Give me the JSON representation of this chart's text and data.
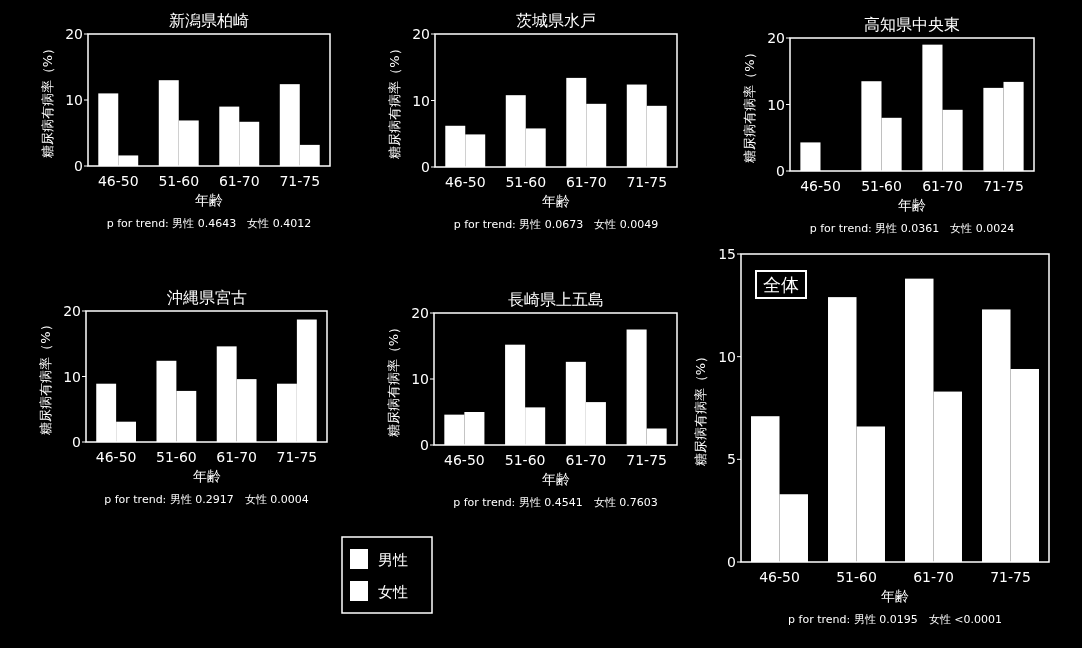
{
  "chart_data": [
    {
      "type": "bar",
      "title": "新潟県柏崎",
      "xlabel": "年齢",
      "ylabel": "糖尿病有病率（%）",
      "categories": [
        "46-50",
        "51-60",
        "61-70",
        "71-75"
      ],
      "series": [
        {
          "color": "#ffffff",
          "values": [
            11.0,
            13.0,
            9.0,
            12.4
          ]
        },
        {
          "color": "#ffffff",
          "values": [
            1.6,
            6.9,
            6.7,
            3.2
          ]
        }
      ],
      "ylim": [
        0,
        20
      ],
      "yticks": [
        0,
        10,
        20
      ],
      "annotations": [
        "p for trend: 男性 0.4643　女性 0.4012"
      ]
    },
    {
      "type": "bar",
      "title": "茨城県水戸",
      "xlabel": "年齢",
      "ylabel": "糖尿病有病率（%）",
      "categories": [
        "46-50",
        "51-60",
        "61-70",
        "71-75"
      ],
      "series": [
        {
          "color": "#ffffff",
          "values": [
            6.2,
            10.8,
            13.4,
            12.4
          ]
        },
        {
          "color": "#ffffff",
          "values": [
            4.9,
            5.8,
            9.5,
            9.2
          ]
        }
      ],
      "ylim": [
        0,
        20
      ],
      "yticks": [
        0,
        10,
        20
      ],
      "annotations": [
        "p for trend: 男性 0.0673　女性 0.0049"
      ]
    },
    {
      "type": "bar",
      "title": "高知県中央東",
      "xlabel": "年齢",
      "ylabel": "糖尿病有病率（%）",
      "categories": [
        "46-50",
        "51-60",
        "61-70",
        "71-75"
      ],
      "series": [
        {
          "color": "#ffffff",
          "values": [
            4.3,
            13.5,
            19.0,
            12.5
          ]
        },
        {
          "color": "#ffffff",
          "values": [
            0,
            8.0,
            9.2,
            13.4
          ]
        }
      ],
      "ylim": [
        0,
        20
      ],
      "yticks": [
        0,
        10,
        20
      ],
      "annotations": [
        "p for trend: 男性 0.0361　女性 0.0024"
      ]
    },
    {
      "type": "bar",
      "title": "沖縄県宮古",
      "xlabel": "年齢",
      "ylabel": "糖尿病有病率（%）",
      "categories": [
        "46-50",
        "51-60",
        "61-70",
        "71-75"
      ],
      "series": [
        {
          "color": "#ffffff",
          "values": [
            8.9,
            12.4,
            14.6,
            8.9
          ]
        },
        {
          "color": "#ffffff",
          "values": [
            3.1,
            7.8,
            9.6,
            18.7
          ]
        }
      ],
      "ylim": [
        0,
        20
      ],
      "yticks": [
        0,
        10,
        20
      ],
      "annotations": [
        "p for trend: 男性 0.2917　女性 0.0004"
      ]
    },
    {
      "type": "bar",
      "title": "長崎県上五島",
      "xlabel": "年齢",
      "ylabel": "糖尿病有病率（%）",
      "categories": [
        "46-50",
        "51-60",
        "61-70",
        "71-75"
      ],
      "series": [
        {
          "name": "男性",
          "color": "#ffffff",
          "values": [
            4.6,
            15.2,
            12.6,
            17.5
          ]
        },
        {
          "name": "女性",
          "color": "#ffffff",
          "values": [
            5.0,
            5.7,
            6.5,
            2.5
          ]
        }
      ],
      "ylim": [
        0,
        20
      ],
      "yticks": [
        0,
        10,
        20
      ],
      "annotations": [
        "p for trend: 男性 0.4541　女性 0.7603"
      ],
      "legend": "bottom left"
    },
    {
      "type": "bar",
      "title": "全体",
      "xlabel": "年齢",
      "ylabel": "糖尿病有病率（%）",
      "categories": [
        "46-50",
        "51-60",
        "61-70",
        "71-75"
      ],
      "series": [
        {
          "color": "#ffffff",
          "values": [
            7.1,
            12.9,
            13.8,
            12.3
          ]
        },
        {
          "color": "#ffffff",
          "values": [
            3.3,
            6.6,
            8.3,
            9.4
          ]
        }
      ],
      "ylim": [
        0,
        15
      ],
      "yticks": [
        0,
        5,
        10,
        15
      ],
      "annotations": [
        "p for trend: 男性 0.0195　女性 <0.0001"
      ]
    }
  ]
}
